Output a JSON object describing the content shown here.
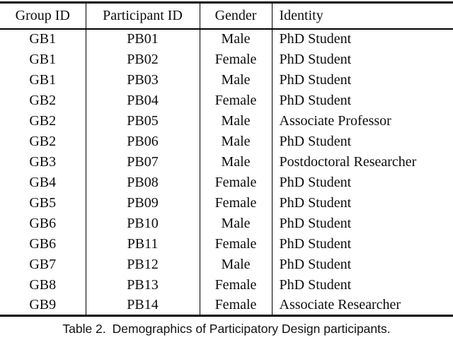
{
  "table": {
    "columns": [
      {
        "label": "Group ID",
        "align": "center"
      },
      {
        "label": "Participant ID",
        "align": "center"
      },
      {
        "label": "Gender",
        "align": "center"
      },
      {
        "label": "Identity",
        "align": "left"
      }
    ],
    "rows": [
      [
        "GB1",
        "PB01",
        "Male",
        "PhD Student"
      ],
      [
        "GB1",
        "PB02",
        "Female",
        "PhD Student"
      ],
      [
        "GB1",
        "PB03",
        "Male",
        "PhD Student"
      ],
      [
        "GB2",
        "PB04",
        "Female",
        "PhD Student"
      ],
      [
        "GB2",
        "PB05",
        "Male",
        "Associate Professor"
      ],
      [
        "GB2",
        "PB06",
        "Male",
        "PhD Student"
      ],
      [
        "GB3",
        "PB07",
        "Male",
        "Postdoctoral Researcher"
      ],
      [
        "GB4",
        "PB08",
        "Female",
        "PhD Student"
      ],
      [
        "GB5",
        "PB09",
        "Female",
        "PhD Student"
      ],
      [
        "GB6",
        "PB10",
        "Male",
        "PhD Student"
      ],
      [
        "GB6",
        "PB11",
        "Female",
        "PhD Student"
      ],
      [
        "GB7",
        "PB12",
        "Male",
        "PhD Student"
      ],
      [
        "GB8",
        "PB13",
        "Female",
        "PhD Student"
      ],
      [
        "GB9",
        "PB14",
        "Female",
        "Associate Researcher"
      ]
    ]
  },
  "caption": {
    "label": "Table 2.",
    "text": "Demographics of Participatory Design participants."
  },
  "colors": {
    "background": "#ffffff",
    "text": "#0d0d0d",
    "rule": "#000000"
  }
}
